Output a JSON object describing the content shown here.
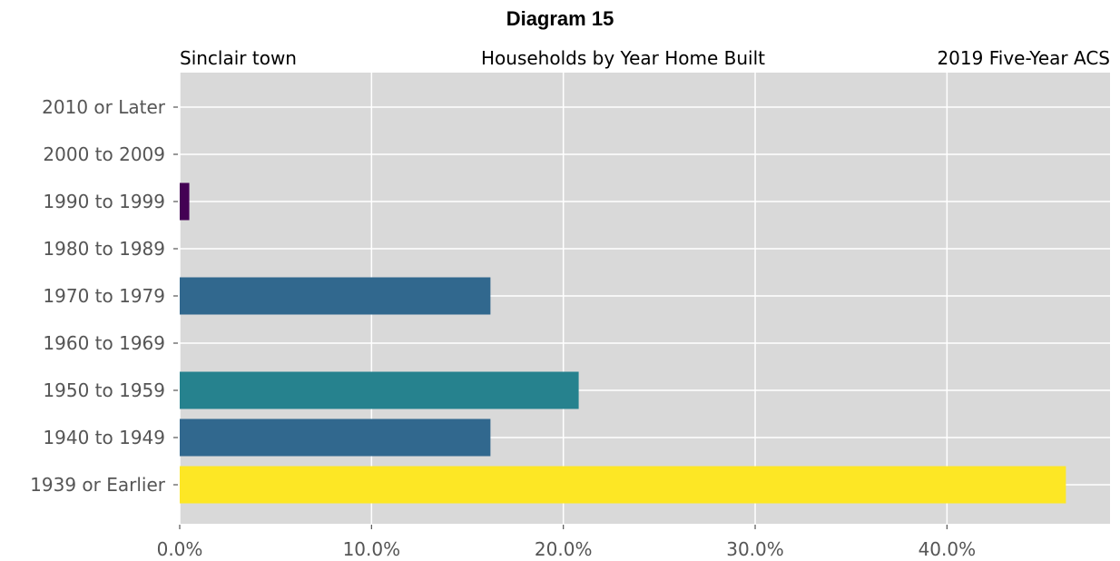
{
  "header": {
    "title": "Diagram 15",
    "left": "Sinclair town",
    "center": "Households by Year Home Built",
    "right": "2019 Five-Year ACS"
  },
  "chart_data": {
    "type": "bar",
    "orientation": "horizontal",
    "categories": [
      "1939 or Earlier",
      "1940 to 1949",
      "1950 to 1959",
      "1960 to 1969",
      "1970 to 1979",
      "1980 to 1989",
      "1990 to 1999",
      "2000 to 2009",
      "2010 or Later"
    ],
    "values": [
      46.2,
      16.2,
      20.8,
      0.0,
      16.2,
      0.0,
      0.5,
      0.0,
      0.0
    ],
    "colors": [
      "#fde725",
      "#31688e",
      "#26828e",
      "#440154",
      "#31688e",
      "#440154",
      "#440154",
      "#440154",
      "#440154"
    ],
    "xlim": [
      0,
      48.5
    ],
    "xticks": [
      0,
      10,
      20,
      30,
      40
    ],
    "xtick_labels": [
      "0.0%",
      "10.0%",
      "20.0%",
      "30.0%",
      "40.0%"
    ],
    "grid": true,
    "background": "#d9d9d9"
  }
}
